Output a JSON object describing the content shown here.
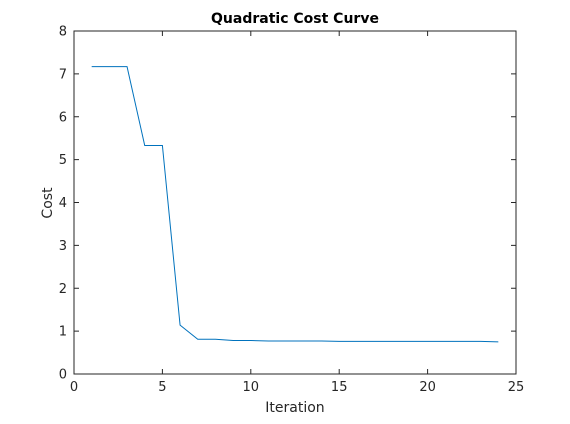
{
  "chart_data": {
    "type": "line",
    "title": "Quadratic Cost Curve",
    "xlabel": "Iteration",
    "ylabel": "Cost",
    "xlim": [
      0,
      25
    ],
    "ylim": [
      0,
      8
    ],
    "xticks": [
      0,
      5,
      10,
      15,
      20,
      25
    ],
    "yticks": [
      0,
      1,
      2,
      3,
      4,
      5,
      6,
      7,
      8
    ],
    "grid": false,
    "legend": "none",
    "colors": {
      "line": "#0072BD",
      "axes": "#262626",
      "background": "#ffffff"
    },
    "series": [
      {
        "x": [
          1,
          2,
          3,
          4,
          5,
          6,
          7,
          8,
          9,
          10,
          11,
          12,
          13,
          14,
          15,
          16,
          17,
          18,
          19,
          20,
          21,
          22,
          23,
          24
        ],
        "y": [
          7.17,
          7.17,
          7.17,
          5.33,
          5.33,
          1.14,
          0.81,
          0.81,
          0.78,
          0.78,
          0.77,
          0.77,
          0.77,
          0.77,
          0.76,
          0.76,
          0.76,
          0.76,
          0.76,
          0.76,
          0.76,
          0.76,
          0.76,
          0.75
        ]
      }
    ]
  }
}
